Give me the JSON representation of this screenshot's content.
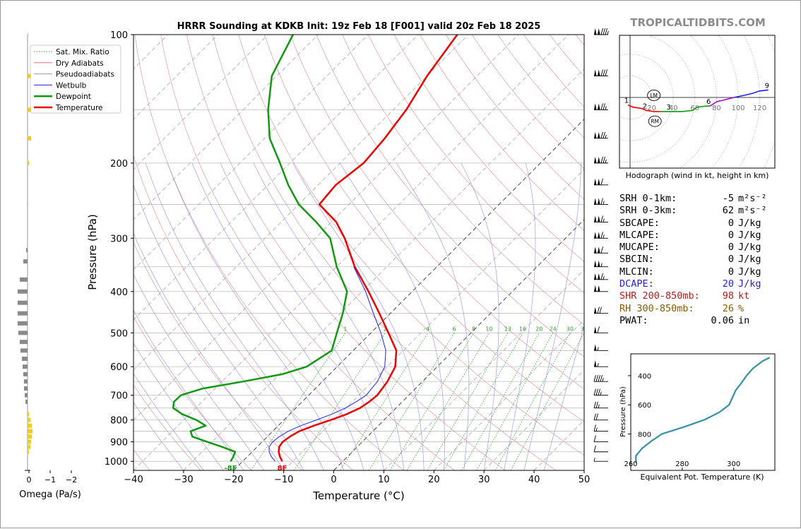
{
  "brand": "TROPICALTIDBITS.COM",
  "chart_data": [
    {
      "type": "line",
      "title": "HRRR Sounding at KDKB Init: 19z Feb 18 [F001] valid 20z Feb 18 2025",
      "xlabel": "Temperature (°C)",
      "ylabel": "Pressure (hPa)",
      "xlim": [
        -40,
        50
      ],
      "ylim": [
        1050,
        100
      ],
      "yscale": "log",
      "skew": true,
      "x_ticks": [
        -40,
        -30,
        -20,
        -10,
        0,
        10,
        20,
        30,
        40,
        50
      ],
      "y_ticks": [
        100,
        200,
        300,
        400,
        500,
        600,
        700,
        800,
        900,
        1000
      ],
      "legend_position": "top-left",
      "legend": [
        {
          "label": "Sat. Mix. Ratio",
          "color": "#2ca02c",
          "style": "dotted"
        },
        {
          "label": "Dry Adiabats",
          "color": "#e07070",
          "style": "solid"
        },
        {
          "label": "Pseudoadiabats",
          "color": "#999999",
          "style": "solid"
        },
        {
          "label": "Wetbulb",
          "color": "#1f1fff",
          "style": "solid"
        },
        {
          "label": "Dewpoint",
          "color": "#119911",
          "style": "solid"
        },
        {
          "label": "Temperature",
          "color": "#ee0000",
          "style": "solid"
        }
      ],
      "mixing_ratio_labels": [
        "1",
        "2",
        "4",
        "6",
        "8",
        "10",
        "13",
        "16",
        "20",
        "24",
        "30",
        "36"
      ],
      "surface_labels": {
        "dewpoint": "-8F",
        "temperature": "8F"
      },
      "series": [
        {
          "name": "Temperature",
          "color": "#ee0000",
          "p": [
            1000,
            975,
            950,
            925,
            900,
            875,
            850,
            825,
            800,
            775,
            750,
            725,
            700,
            650,
            600,
            550,
            500,
            450,
            400,
            350,
            300,
            275,
            250,
            225,
            200,
            175,
            150,
            125,
            100
          ],
          "t": [
            -12.1,
            -13.5,
            -14.7,
            -15.6,
            -15.9,
            -15.5,
            -14.7,
            -12.9,
            -10.6,
            -8.6,
            -7.2,
            -6.6,
            -6.3,
            -7.0,
            -8.4,
            -11.4,
            -16.5,
            -22.2,
            -28.7,
            -36.4,
            -44.1,
            -49.0,
            -55.9,
            -56.5,
            -55.3,
            -56.0,
            -57.4,
            -60.0,
            -62.2
          ]
        },
        {
          "name": "Wetbulb",
          "color": "#1f1fff",
          "p": [
            1000,
            975,
            950,
            925,
            900,
            875,
            850,
            825,
            800,
            775,
            750,
            725,
            700,
            650,
            600,
            550,
            500,
            450,
            400,
            350
          ],
          "t": [
            -13.5,
            -15.2,
            -16.6,
            -17.6,
            -17.9,
            -17.6,
            -16.9,
            -15.5,
            -13.5,
            -11.6,
            -10.1,
            -9.2,
            -8.5,
            -9.0,
            -10.5,
            -13.5,
            -18.0,
            -23.4,
            -29.3,
            -36.6
          ]
        },
        {
          "name": "Dewpoint",
          "color": "#119911",
          "p": [
            1000,
            975,
            950,
            925,
            900,
            875,
            850,
            825,
            800,
            775,
            750,
            725,
            700,
            675,
            650,
            625,
            600,
            550,
            500,
            450,
            400,
            350,
            300,
            275,
            250,
            225,
            200,
            175,
            150,
            125,
            100
          ],
          "t": [
            -22.4,
            -22.8,
            -23.4,
            -27.0,
            -31.0,
            -35.0,
            -36.4,
            -34.5,
            -37.5,
            -41.5,
            -44.5,
            -45.6,
            -45.5,
            -42.5,
            -35.8,
            -29.5,
            -26.1,
            -24.3,
            -26.8,
            -29.5,
            -33.0,
            -40.0,
            -47.0,
            -53.0,
            -60.0,
            -66.0,
            -72.0,
            -79.0,
            -85.0,
            -91.0,
            -95.0
          ]
        }
      ],
      "omega_panel": {
        "xlabel": "Omega (Pa/s)",
        "x_ticks": [
          "0",
          "−1",
          "−2"
        ]
      },
      "wind_barbs_kt": [
        {
          "p": 100,
          "speed": 135
        },
        {
          "p": 125,
          "speed": 130
        },
        {
          "p": 150,
          "speed": 125
        },
        {
          "p": 175,
          "speed": 125
        },
        {
          "p": 200,
          "speed": 125
        },
        {
          "p": 225,
          "speed": 110
        },
        {
          "p": 250,
          "speed": 115
        },
        {
          "p": 275,
          "speed": 115
        },
        {
          "p": 300,
          "speed": 115
        },
        {
          "p": 325,
          "speed": 110
        },
        {
          "p": 350,
          "speed": 105
        },
        {
          "p": 375,
          "speed": 115
        },
        {
          "p": 400,
          "speed": 100
        },
        {
          "p": 450,
          "speed": 70
        },
        {
          "p": 500,
          "speed": 60
        },
        {
          "p": 550,
          "speed": 55
        },
        {
          "p": 600,
          "speed": 55
        },
        {
          "p": 650,
          "speed": 45
        },
        {
          "p": 700,
          "speed": 35
        },
        {
          "p": 750,
          "speed": 25
        },
        {
          "p": 800,
          "speed": 20
        },
        {
          "p": 850,
          "speed": 15
        },
        {
          "p": 900,
          "speed": 10
        },
        {
          "p": 950,
          "speed": 10
        },
        {
          "p": 1000,
          "speed": 5
        }
      ]
    },
    {
      "type": "line",
      "xlabel": "Hodograph (wind in kt, height in km)",
      "x_ticks": [
        20,
        40,
        60,
        80,
        100,
        120
      ],
      "height_labels": [
        "1",
        "2",
        "3",
        "6",
        "9"
      ],
      "markers": [
        "LM",
        "RM"
      ],
      "segments": [
        {
          "color": "#ee0000",
          "u": [
            -2,
            3,
            10,
            15,
            22,
            28
          ],
          "v": [
            -7,
            -9,
            -10,
            -12,
            -13,
            -13
          ]
        },
        {
          "color": "#119911",
          "u": [
            28,
            36,
            48,
            58,
            62,
            70,
            74
          ],
          "v": [
            -13,
            -13,
            -13,
            -12,
            -9,
            -8,
            -8
          ]
        },
        {
          "color": "#b000d0",
          "u": [
            74,
            80,
            88,
            96
          ],
          "v": [
            -8,
            -4,
            -2,
            0
          ]
        },
        {
          "color": "#2020ee",
          "u": [
            96,
            106,
            114,
            120,
            128
          ],
          "v": [
            0,
            2,
            4,
            6,
            7
          ]
        }
      ],
      "lm": {
        "u": 22,
        "v": 2
      },
      "rm": {
        "u": 23,
        "v": -22
      }
    },
    {
      "type": "line",
      "xlabel": "Equivalent Pot. Temperature (K)",
      "ylabel": "Pressure (hPa)",
      "x_ticks": [
        260,
        280,
        300
      ],
      "y_ticks": [
        400,
        600,
        800
      ],
      "xlim": [
        260,
        316
      ],
      "ylim": [
        1050,
        250
      ],
      "series": [
        {
          "color": "#3a95aa",
          "p": [
            1000,
            950,
            900,
            850,
            800,
            750,
            700,
            650,
            600,
            550,
            500,
            450,
            400,
            350,
            300,
            275
          ],
          "theta_e": [
            262.0,
            262.0,
            264.3,
            267.9,
            272.1,
            281.0,
            289.0,
            294.5,
            298.2,
            299.5,
            300.8,
            303.0,
            305.0,
            307.5,
            311.2,
            314.0
          ]
        }
      ]
    }
  ],
  "stats": [
    {
      "label": "SRH 0-1km:",
      "value": "-5",
      "unit": "m²s⁻²",
      "color": "#000000"
    },
    {
      "label": "SRH 0-3km:",
      "value": "62",
      "unit": "m²s⁻²",
      "color": "#000000"
    },
    {
      "label": "SBCAPE:",
      "value": "0",
      "unit": "J/kg",
      "color": "#000000"
    },
    {
      "label": "MLCAPE:",
      "value": "0",
      "unit": "J/kg",
      "color": "#000000"
    },
    {
      "label": "MUCAPE:",
      "value": "0",
      "unit": "J/kg",
      "color": "#000000"
    },
    {
      "label": "SBCIN:",
      "value": "0",
      "unit": "J/kg",
      "color": "#000000"
    },
    {
      "label": "MLCIN:",
      "value": "0",
      "unit": "J/kg",
      "color": "#000000"
    },
    {
      "label": "DCAPE:",
      "value": "20",
      "unit": "J/kg",
      "color": "#1f1fdd"
    },
    {
      "label": "SHR 200-850mb:",
      "value": "98",
      "unit": "kt",
      "color": "#b0201a"
    },
    {
      "label": "RH 300-850mb:",
      "value": "26",
      "unit": "%",
      "color": "#8a5a00"
    },
    {
      "label": "PWAT:",
      "value": "0.06",
      "unit": "in",
      "color": "#000000"
    }
  ]
}
